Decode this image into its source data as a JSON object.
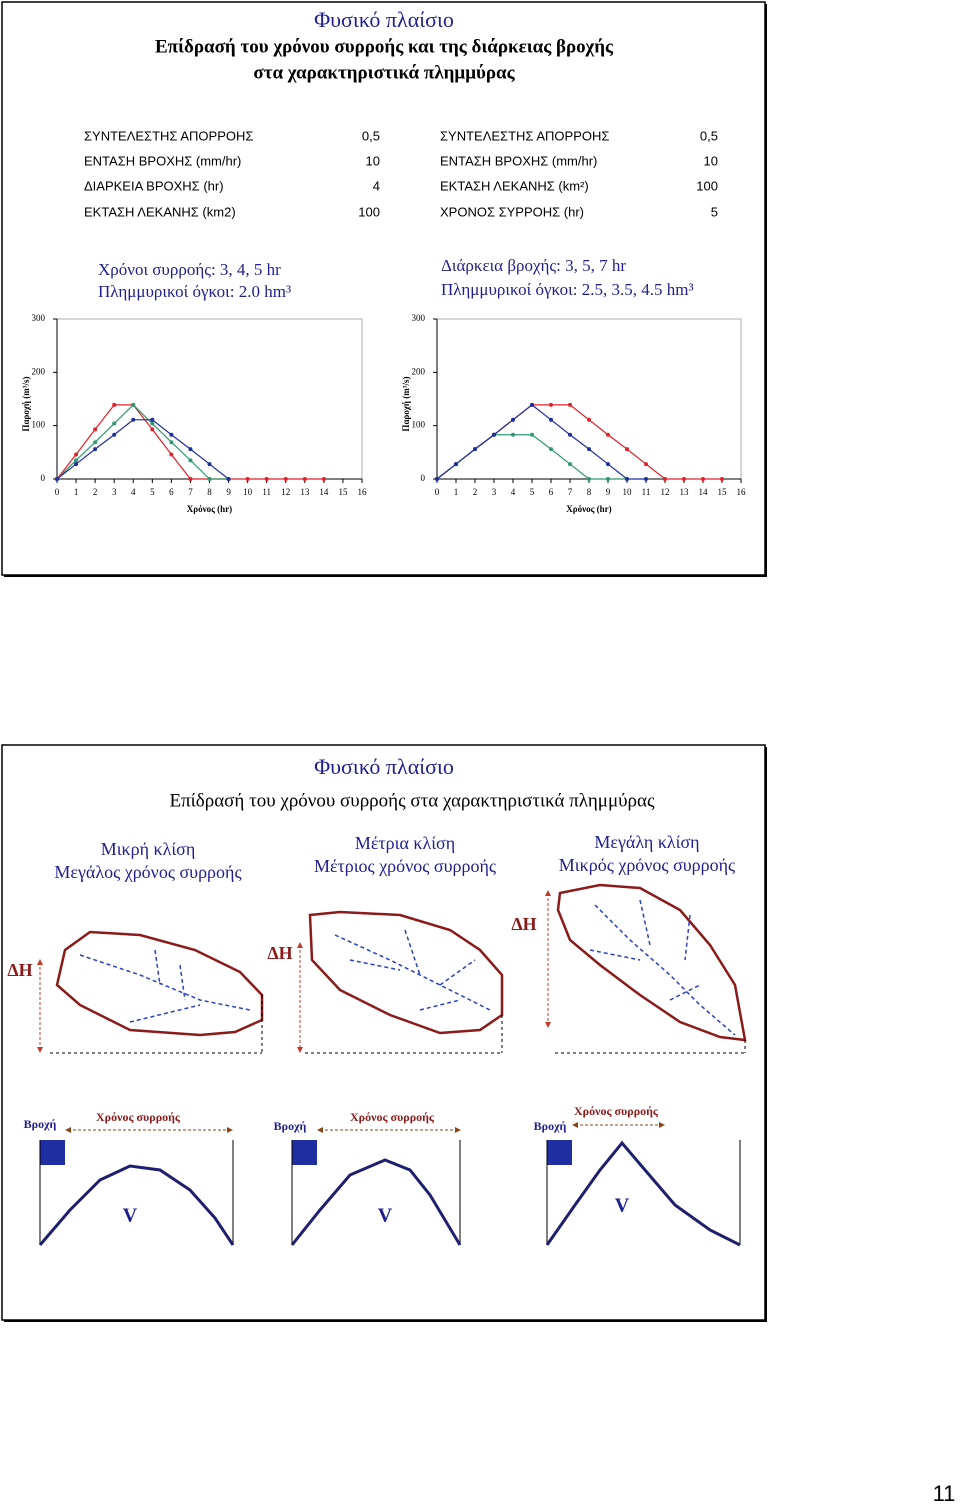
{
  "slide1": {
    "title": "Φυσικό πλαίσιο",
    "subtitle": [
      "Επίδρασή του χρόνου συρροής και της διάρκειας βροχής",
      "στα χαρακτηριστικά πλημμύρας"
    ],
    "tables": [
      [
        [
          "ΣΥΝΤΕΛΕΣΤΗΣ ΑΠΟΡΡΟΗΣ",
          "0,5"
        ],
        [
          "ΕΝΤΑΣΗ ΒΡΟΧΗΣ (mm/hr)",
          "10"
        ],
        [
          "ΔΙΑΡΚΕΙΑ ΒΡΟΧΗΣ (hr)",
          "4"
        ],
        [
          "ΕΚΤΑΣΗ ΛΕΚΑΝΗΣ (km2)",
          "100"
        ]
      ],
      [
        [
          "ΣΥΝΤΕΛΕΣΤΗΣ ΑΠΟΡΡΟΗΣ",
          "0,5"
        ],
        [
          "ΕΝΤΑΣΗ ΒΡΟΧΗΣ (mm/hr)",
          "10"
        ],
        [
          "ΕΚΤΑΣΗ ΛΕΚΑΝΗΣ (km²)",
          "100"
        ],
        [
          "ΧΡΟΝΟΣ ΣΥΡΡΟΗΣ (hr)",
          "5"
        ]
      ]
    ]
  },
  "chart_data": [
    {
      "type": "line",
      "title": "Χρόνοι συρροής: 3, 4, 5 hr",
      "subtitle": "Πλημμυρικοί όγκοι: 2.0 hm³",
      "xlabel": "Χρόνος (hr)",
      "ylabel": "Παροχή (m³/s)",
      "x": [
        0,
        1,
        2,
        3,
        4,
        5,
        6,
        7,
        8,
        9,
        10,
        11,
        12,
        13,
        14
      ],
      "series": [
        {
          "color": "#e0202a",
          "values": [
            0,
            46,
            93,
            139,
            139,
            93,
            46,
            0,
            0,
            0,
            0,
            0,
            0,
            0,
            0
          ]
        },
        {
          "color": "#2e9a6e",
          "values": [
            0,
            35,
            69,
            104,
            139,
            104,
            69,
            35,
            0,
            0,
            null,
            null,
            null,
            null,
            null
          ]
        },
        {
          "color": "#1f2ea0",
          "values": [
            0,
            28,
            56,
            83,
            111,
            111,
            83,
            56,
            28,
            0,
            null,
            null,
            null,
            null,
            null
          ]
        }
      ],
      "xlim": [
        0,
        16
      ],
      "ylim": [
        0,
        300
      ],
      "xticks": [
        0,
        1,
        2,
        3,
        4,
        5,
        6,
        7,
        8,
        9,
        10,
        11,
        12,
        13,
        14,
        15,
        16
      ],
      "yticks": [
        0,
        100,
        200,
        300
      ],
      "grid": false
    },
    {
      "type": "line",
      "title": "Διάρκεια βροχής: 3, 5, 7 hr",
      "subtitle": "Πλημμυρικοί όγκοι: 2.5, 3.5, 4.5 hm³",
      "xlabel": "Χρόνος (hr)",
      "ylabel": "Παροχή (m³/s)",
      "x": [
        0,
        1,
        2,
        3,
        4,
        5,
        6,
        7,
        8,
        9,
        10,
        11,
        12,
        13,
        14,
        15
      ],
      "series": [
        {
          "color": "#e0202a",
          "values": [
            0,
            28,
            56,
            83,
            111,
            139,
            139,
            139,
            111,
            83,
            56,
            28,
            0,
            0,
            0,
            0
          ]
        },
        {
          "color": "#2e9a6e",
          "values": [
            0,
            28,
            56,
            83,
            83,
            83,
            56,
            28,
            0,
            0,
            0,
            null,
            null,
            null,
            null,
            null
          ]
        },
        {
          "color": "#1f2ea0",
          "values": [
            0,
            28,
            56,
            83,
            111,
            139,
            111,
            83,
            56,
            28,
            0,
            0,
            null,
            null,
            null,
            null
          ]
        }
      ],
      "xlim": [
        0,
        16
      ],
      "ylim": [
        0,
        300
      ],
      "xticks": [
        0,
        1,
        2,
        3,
        4,
        5,
        6,
        7,
        8,
        9,
        10,
        11,
        12,
        13,
        14,
        15,
        16
      ],
      "yticks": [
        0,
        100,
        200,
        300
      ],
      "grid": false
    }
  ],
  "slide2": {
    "title": "Φυσικό πλαίσιο",
    "subtitle": "Επίδρασή του χρόνου συρροής στα χαρακτηριστικά πλημμύρας",
    "panels": [
      {
        "slope": "Μικρή κλίση",
        "time": "Μεγάλος χρόνος συρροής",
        "dh": "ΔΗ",
        "rain": "Βροχή",
        "conc": "Χρόνος συρροής",
        "volume": "V"
      },
      {
        "slope": "Μέτρια κλίση",
        "time": "Μέτριος χρόνος συρροής",
        "dh": "ΔΗ",
        "rain": "Βροχή",
        "conc": "Χρόνος συρροής",
        "volume": "V"
      },
      {
        "slope": "Μεγάλη κλίση",
        "time": "Μικρός χρόνος συρροής",
        "dh": "ΔΗ",
        "rain": "Βροχή",
        "conc": "Χρόνος συρροής",
        "volume": "V"
      }
    ]
  },
  "page_number": "11"
}
